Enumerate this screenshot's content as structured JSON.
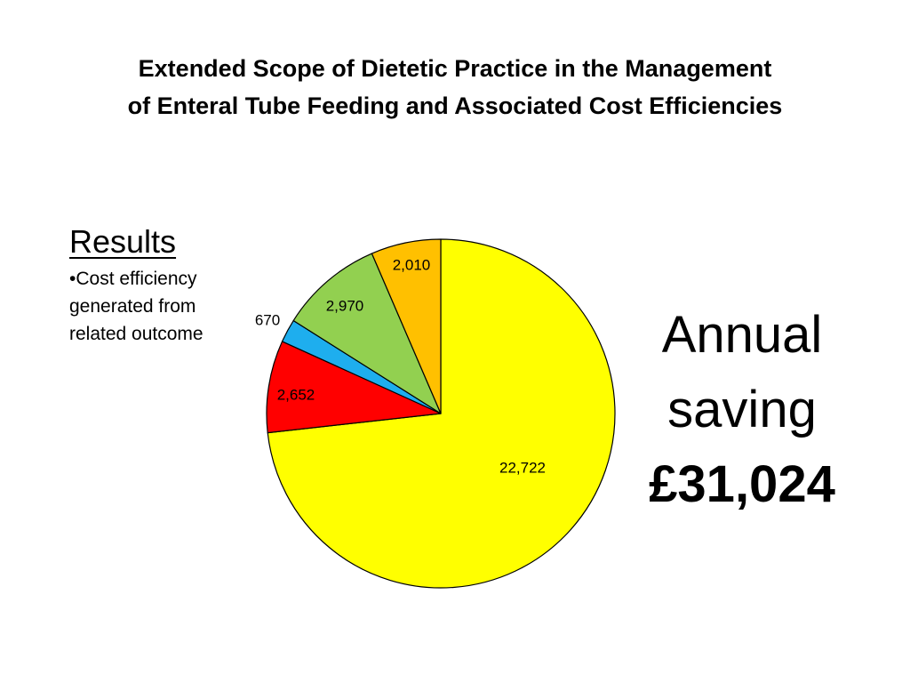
{
  "slide": {
    "title_line1": "Extended Scope of Dietetic Practice in the Management",
    "title_line2": "of Enteral Tube Feeding and Associated Cost Efficiencies",
    "results_heading": "Results",
    "results_bullet": "•Cost efficiency generated from related outcome",
    "saving_line1": "Annual",
    "saving_line2": "saving",
    "saving_amount": "£31,024"
  },
  "chart_data": {
    "type": "pie",
    "title": "",
    "start": "12 o'clock",
    "direction": "clockwise",
    "slices": [
      {
        "value": 22722,
        "label": "22,722",
        "color": "#FFFF00"
      },
      {
        "value": 2652,
        "label": "2,652",
        "color": "#FF0000"
      },
      {
        "value": 670,
        "label": "670",
        "color": "#1EAEEE"
      },
      {
        "value": 2970,
        "label": "2,970",
        "color": "#92D050"
      },
      {
        "value": 2010,
        "label": "2,010",
        "color": "#FFC000"
      }
    ]
  }
}
